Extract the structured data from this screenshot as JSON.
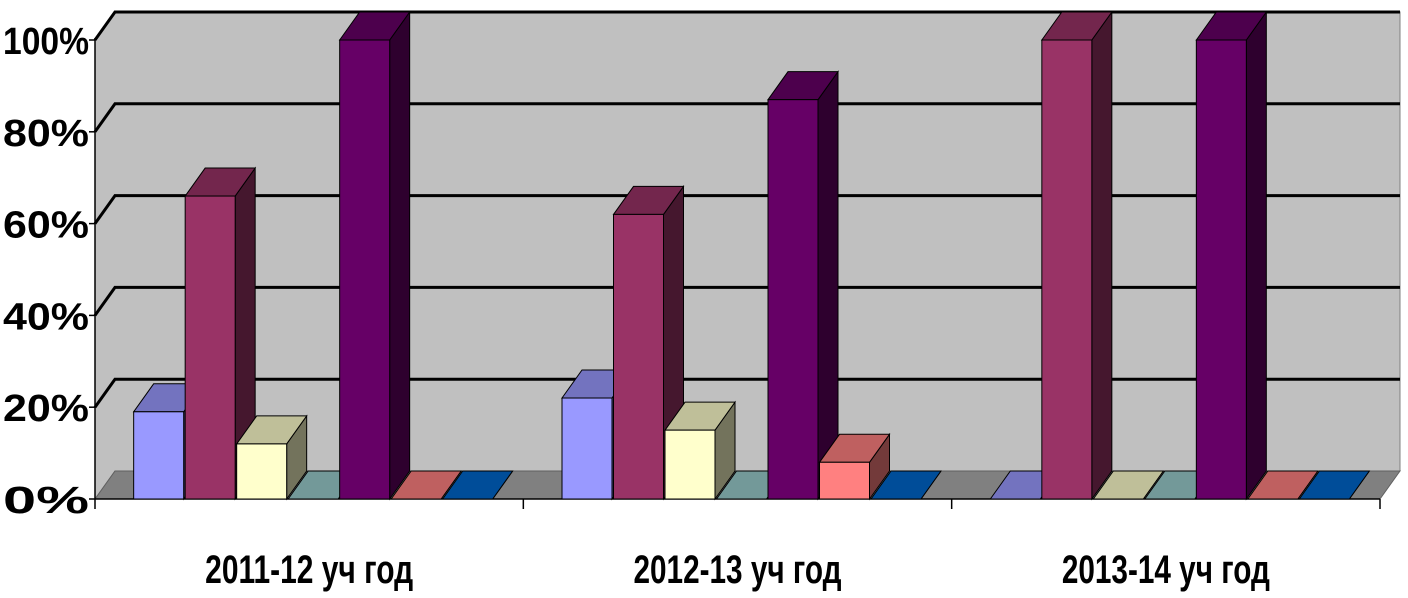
{
  "chart_data": {
    "type": "bar",
    "subtype": "3d-clustered-column",
    "categories": [
      "2011-12 уч год",
      "2012-13 уч год",
      "2013-14 уч год"
    ],
    "ylim": [
      0,
      100
    ],
    "y_ticks": [
      "0%",
      "20%",
      "40%",
      "60%",
      "80%",
      "100%"
    ],
    "grid": true,
    "legend": "none",
    "plot_background": "#C0C0C0",
    "series": [
      {
        "color": "#9999FF",
        "values": [
          19,
          22,
          0
        ]
      },
      {
        "color": "#993366",
        "values": [
          66,
          62,
          100
        ]
      },
      {
        "color": "#FFFFCC",
        "values": [
          12,
          15,
          0
        ]
      },
      {
        "color": "#99CCCC",
        "values": [
          0,
          0,
          0
        ]
      },
      {
        "color": "#660066",
        "values": [
          100,
          87,
          100
        ]
      },
      {
        "color": "#FF8080",
        "values": [
          0,
          8,
          0
        ]
      },
      {
        "color": "#0066CC",
        "values": [
          0,
          0,
          0
        ]
      }
    ]
  }
}
